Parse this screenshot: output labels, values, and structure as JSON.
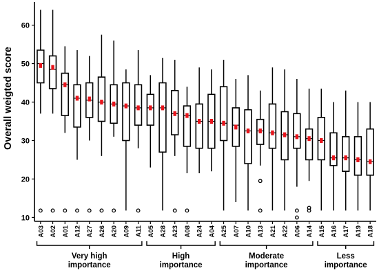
{
  "chart_data": {
    "type": "box",
    "ylabel": "Overall weigted score",
    "ylim": [
      9,
      66
    ],
    "yticks": [
      10,
      20,
      30,
      40,
      50,
      60
    ],
    "grid": false,
    "mean_marker_color": "#e8141b",
    "categories": [
      "A03",
      "A02",
      "A01",
      "A12",
      "A27",
      "A26",
      "A20",
      "A09",
      "A11",
      "A05",
      "A28",
      "A23",
      "A08",
      "A24",
      "A04",
      "A25",
      "A07",
      "A10",
      "A13",
      "A21",
      "A22",
      "A06",
      "A14",
      "A15",
      "A16",
      "A17",
      "A19",
      "A18"
    ],
    "boxes": [
      {
        "min": 37,
        "q1": 45,
        "median": 50,
        "q3": 53.5,
        "max": 64,
        "mean": 49.5,
        "outliers": [
          11.8
        ]
      },
      {
        "min": 37,
        "q1": 43.5,
        "median": 48.5,
        "q3": 52,
        "max": 64,
        "mean": 49,
        "outliers": [
          11.8
        ]
      },
      {
        "min": 32,
        "q1": 36.5,
        "median": 44.5,
        "q3": 47.5,
        "max": 54.5,
        "mean": 44.5,
        "outliers": [
          11.8
        ]
      },
      {
        "min": 25,
        "q1": 33.5,
        "median": 41,
        "q3": 44.5,
        "max": 53.5,
        "mean": 41,
        "outliers": [
          11.8
        ]
      },
      {
        "min": 30,
        "q1": 36,
        "median": 40.5,
        "q3": 45,
        "max": 52,
        "mean": 40.8,
        "outliers": [
          11.8
        ]
      },
      {
        "min": 26,
        "q1": 35,
        "median": 40,
        "q3": 46.5,
        "max": 57.5,
        "mean": 40,
        "outliers": [
          11.8
        ]
      },
      {
        "min": 31,
        "q1": 34.5,
        "median": 39.5,
        "q3": 44.5,
        "max": 56,
        "mean": 39.5,
        "outliers": [
          11.8
        ]
      },
      {
        "min": 11.8,
        "q1": 30,
        "median": 39,
        "q3": 45,
        "max": 48.5,
        "mean": 39,
        "outliers": []
      },
      {
        "min": 28,
        "q1": 34,
        "median": 38.5,
        "q3": 44.5,
        "max": 53.5,
        "mean": 38.5,
        "outliers": [
          11.8
        ]
      },
      {
        "min": 23,
        "q1": 34,
        "median": 38.5,
        "q3": 42,
        "max": 47,
        "mean": 38.5,
        "outliers": []
      },
      {
        "min": 11.8,
        "q1": 27,
        "median": 38.5,
        "q3": 45,
        "max": 51.5,
        "mean": 38.5,
        "outliers": []
      },
      {
        "min": 26,
        "q1": 31.5,
        "median": 37,
        "q3": 43,
        "max": 51,
        "mean": 37,
        "outliers": [
          11.8
        ]
      },
      {
        "min": 21.5,
        "q1": 28.5,
        "median": 36.5,
        "q3": 39,
        "max": 44,
        "mean": 36.5,
        "outliers": [
          11.8
        ]
      },
      {
        "min": 21.5,
        "q1": 28,
        "median": 35,
        "q3": 39.5,
        "max": 49,
        "mean": 35,
        "outliers": []
      },
      {
        "min": 22,
        "q1": 28,
        "median": 35,
        "q3": 42,
        "max": 48.5,
        "mean": 35,
        "outliers": []
      },
      {
        "min": 11.8,
        "q1": 30,
        "median": 34.5,
        "q3": 44,
        "max": 51,
        "mean": 34.5,
        "outliers": []
      },
      {
        "min": 14,
        "q1": 28.5,
        "median": 34,
        "q3": 38.5,
        "max": 46,
        "mean": 33.5,
        "outliers": []
      },
      {
        "min": 11.8,
        "q1": 24,
        "median": 32.5,
        "q3": 38,
        "max": 47,
        "mean": 32.5,
        "outliers": []
      },
      {
        "min": 23.5,
        "q1": 29,
        "median": 32.5,
        "q3": 35.5,
        "max": 43,
        "mean": 32.5,
        "outliers": [
          19.5,
          11.8
        ]
      },
      {
        "min": 11.8,
        "q1": 28,
        "median": 32,
        "q3": 39.5,
        "max": 49,
        "mean": 32,
        "outliers": []
      },
      {
        "min": 11.8,
        "q1": 25,
        "median": 31.5,
        "q3": 37.5,
        "max": 48.5,
        "mean": 31.5,
        "outliers": []
      },
      {
        "min": 18,
        "q1": 28,
        "median": 31,
        "q3": 37,
        "max": 46,
        "mean": 31,
        "outliers": [
          11.8,
          10
        ]
      },
      {
        "min": 19.5,
        "q1": 25,
        "median": 30.5,
        "q3": 33,
        "max": 43.5,
        "mean": 30.5,
        "outliers": [
          12.5,
          11.8
        ]
      },
      {
        "min": 11.8,
        "q1": 25,
        "median": 30,
        "q3": 36,
        "max": 43.5,
        "mean": 30,
        "outliers": []
      },
      {
        "min": 11.8,
        "q1": 23.5,
        "median": 25.5,
        "q3": 32,
        "max": 40,
        "mean": 25.5,
        "outliers": []
      },
      {
        "min": 11.8,
        "q1": 22,
        "median": 25.5,
        "q3": 31,
        "max": 43,
        "mean": 25.5,
        "outliers": []
      },
      {
        "min": 11.8,
        "q1": 21,
        "median": 25,
        "q3": 31,
        "max": 40,
        "mean": 25,
        "outliers": []
      },
      {
        "min": 11.8,
        "q1": 21,
        "median": 24.5,
        "q3": 33,
        "max": 40,
        "mean": 24.5,
        "outliers": []
      }
    ],
    "groups": [
      {
        "label_lines": [
          "Very high",
          "importance"
        ],
        "start": 0,
        "end": 8
      },
      {
        "label_lines": [
          "High",
          "importance"
        ],
        "start": 9,
        "end": 14
      },
      {
        "label_lines": [
          "Moderate",
          "importance"
        ],
        "start": 15,
        "end": 22
      },
      {
        "label_lines": [
          "Less",
          "importance"
        ],
        "start": 23,
        "end": 27
      }
    ]
  }
}
